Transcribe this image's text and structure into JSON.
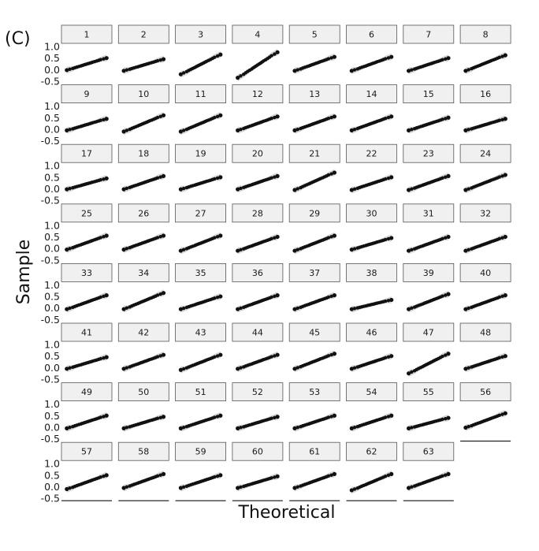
{
  "panel_tag": "(C)",
  "chart_data": {
    "type": "scatter",
    "subtype": "qq-plot-facets",
    "xlabel": "Theoretical",
    "ylabel": "Sample",
    "ylim": [
      -0.5,
      1.0
    ],
    "yticks": [
      "1.0",
      "0.5",
      "0.0",
      "-0.5"
    ],
    "ytick_values": [
      1.0,
      0.5,
      0.0,
      -0.5
    ],
    "facet_columns": 8,
    "facets": [
      "1",
      "2",
      "3",
      "4",
      "5",
      "6",
      "7",
      "8",
      "9",
      "10",
      "11",
      "12",
      "13",
      "14",
      "15",
      "16",
      "17",
      "18",
      "19",
      "20",
      "21",
      "22",
      "23",
      "24",
      "25",
      "26",
      "27",
      "28",
      "29",
      "30",
      "31",
      "32",
      "33",
      "34",
      "35",
      "36",
      "37",
      "38",
      "39",
      "40",
      "41",
      "42",
      "43",
      "44",
      "45",
      "46",
      "47",
      "48",
      "49",
      "50",
      "51",
      "52",
      "53",
      "54",
      "55",
      "56",
      "57",
      "58",
      "59",
      "60",
      "61",
      "62",
      "63"
    ],
    "x": [
      -2.0,
      -1.7,
      -1.4,
      -1.2,
      -1.0,
      -0.8,
      -0.6,
      -0.45,
      -0.3,
      -0.15,
      0.0,
      0.15,
      0.3,
      0.45,
      0.6,
      0.8,
      1.0,
      1.2,
      1.4,
      1.7,
      2.0
    ],
    "facet_y_range": [
      [
        -0.02,
        0.5
      ],
      [
        -0.05,
        0.45
      ],
      [
        -0.2,
        0.65
      ],
      [
        -0.35,
        0.75
      ],
      [
        -0.05,
        0.55
      ],
      [
        -0.05,
        0.55
      ],
      [
        -0.05,
        0.5
      ],
      [
        -0.05,
        0.62
      ],
      [
        -0.05,
        0.45
      ],
      [
        -0.1,
        0.6
      ],
      [
        -0.1,
        0.6
      ],
      [
        -0.05,
        0.55
      ],
      [
        -0.05,
        0.55
      ],
      [
        -0.05,
        0.55
      ],
      [
        -0.05,
        0.5
      ],
      [
        -0.05,
        0.45
      ],
      [
        -0.02,
        0.45
      ],
      [
        -0.02,
        0.55
      ],
      [
        -0.02,
        0.5
      ],
      [
        -0.02,
        0.55
      ],
      [
        -0.05,
        0.7
      ],
      [
        -0.05,
        0.5
      ],
      [
        -0.05,
        0.55
      ],
      [
        -0.05,
        0.6
      ],
      [
        -0.05,
        0.55
      ],
      [
        -0.05,
        0.55
      ],
      [
        -0.1,
        0.55
      ],
      [
        -0.1,
        0.5
      ],
      [
        -0.1,
        0.55
      ],
      [
        -0.05,
        0.45
      ],
      [
        -0.1,
        0.5
      ],
      [
        -0.1,
        0.5
      ],
      [
        -0.05,
        0.55
      ],
      [
        -0.05,
        0.65
      ],
      [
        -0.05,
        0.5
      ],
      [
        -0.05,
        0.55
      ],
      [
        -0.05,
        0.55
      ],
      [
        -0.05,
        0.35
      ],
      [
        -0.05,
        0.6
      ],
      [
        -0.05,
        0.55
      ],
      [
        -0.05,
        0.45
      ],
      [
        -0.05,
        0.55
      ],
      [
        -0.1,
        0.55
      ],
      [
        -0.05,
        0.55
      ],
      [
        -0.05,
        0.6
      ],
      [
        -0.05,
        0.5
      ],
      [
        -0.25,
        0.6
      ],
      [
        -0.05,
        0.5
      ],
      [
        -0.05,
        0.5
      ],
      [
        -0.05,
        0.45
      ],
      [
        -0.05,
        0.5
      ],
      [
        -0.05,
        0.45
      ],
      [
        -0.05,
        0.5
      ],
      [
        -0.05,
        0.5
      ],
      [
        -0.05,
        0.4
      ],
      [
        -0.02,
        0.6
      ],
      [
        -0.1,
        0.5
      ],
      [
        -0.05,
        0.55
      ],
      [
        -0.05,
        0.5
      ],
      [
        -0.05,
        0.45
      ],
      [
        -0.05,
        0.55
      ],
      [
        -0.15,
        0.55
      ],
      [
        -0.05,
        0.55
      ]
    ],
    "grid": false,
    "legend": "none"
  }
}
